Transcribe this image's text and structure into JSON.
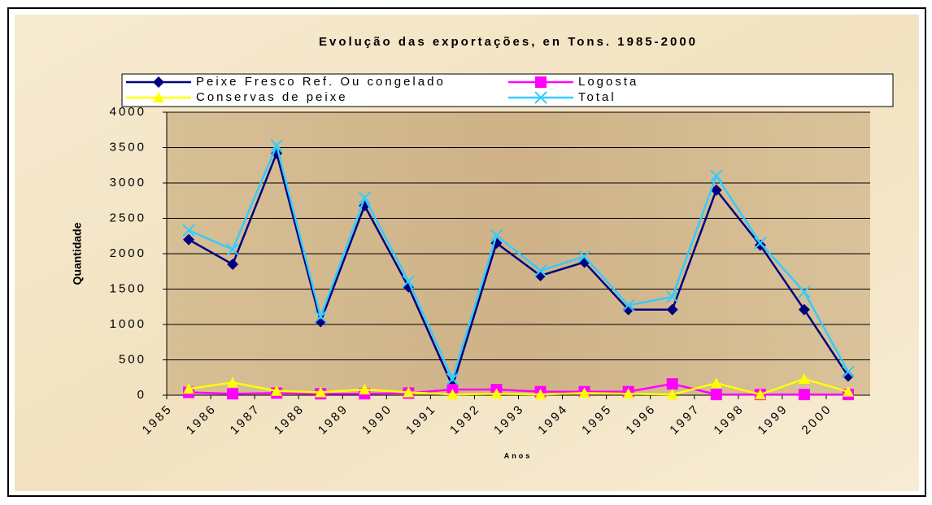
{
  "chart_data": {
    "type": "line",
    "title": "Evolução das exportações, en Tons. 1985-2000",
    "x_label": "Anos",
    "y_label": "Quantidade",
    "categories": [
      "1985",
      "1986",
      "1987",
      "1988",
      "1989",
      "1990",
      "1991",
      "1992",
      "1993",
      "1994",
      "1995",
      "1996",
      "1997",
      "1998",
      "1999",
      "2000"
    ],
    "series": [
      {
        "name": "Peixe Fresco Ref. Ou congelado",
        "color": "#000080",
        "marker": "diamond",
        "values": [
          2200,
          1850,
          3420,
          1040,
          2680,
          1530,
          130,
          2150,
          1690,
          1880,
          1210,
          1210,
          2900,
          2120,
          1210,
          270
        ]
      },
      {
        "name": "Logosta",
        "color": "#ff00ff",
        "marker": "square",
        "values": [
          40,
          20,
          30,
          20,
          20,
          30,
          80,
          80,
          50,
          50,
          50,
          160,
          10,
          10,
          10,
          10
        ]
      },
      {
        "name": "Conservas de peixe",
        "color": "#ffff00",
        "marker": "triangle",
        "values": [
          90,
          180,
          60,
          40,
          80,
          40,
          10,
          20,
          10,
          30,
          20,
          10,
          170,
          10,
          230,
          50
        ]
      },
      {
        "name": "Total",
        "color": "#33ccff",
        "marker": "x",
        "values": [
          2330,
          2060,
          3530,
          1110,
          2790,
          1610,
          230,
          2260,
          1760,
          1960,
          1270,
          1390,
          3100,
          2150,
          1460,
          330
        ]
      }
    ],
    "ylim": [
      0,
      4000
    ],
    "yticks": [
      0,
      500,
      1000,
      1500,
      2000,
      2500,
      3000,
      3500,
      4000
    ],
    "grid": true
  }
}
